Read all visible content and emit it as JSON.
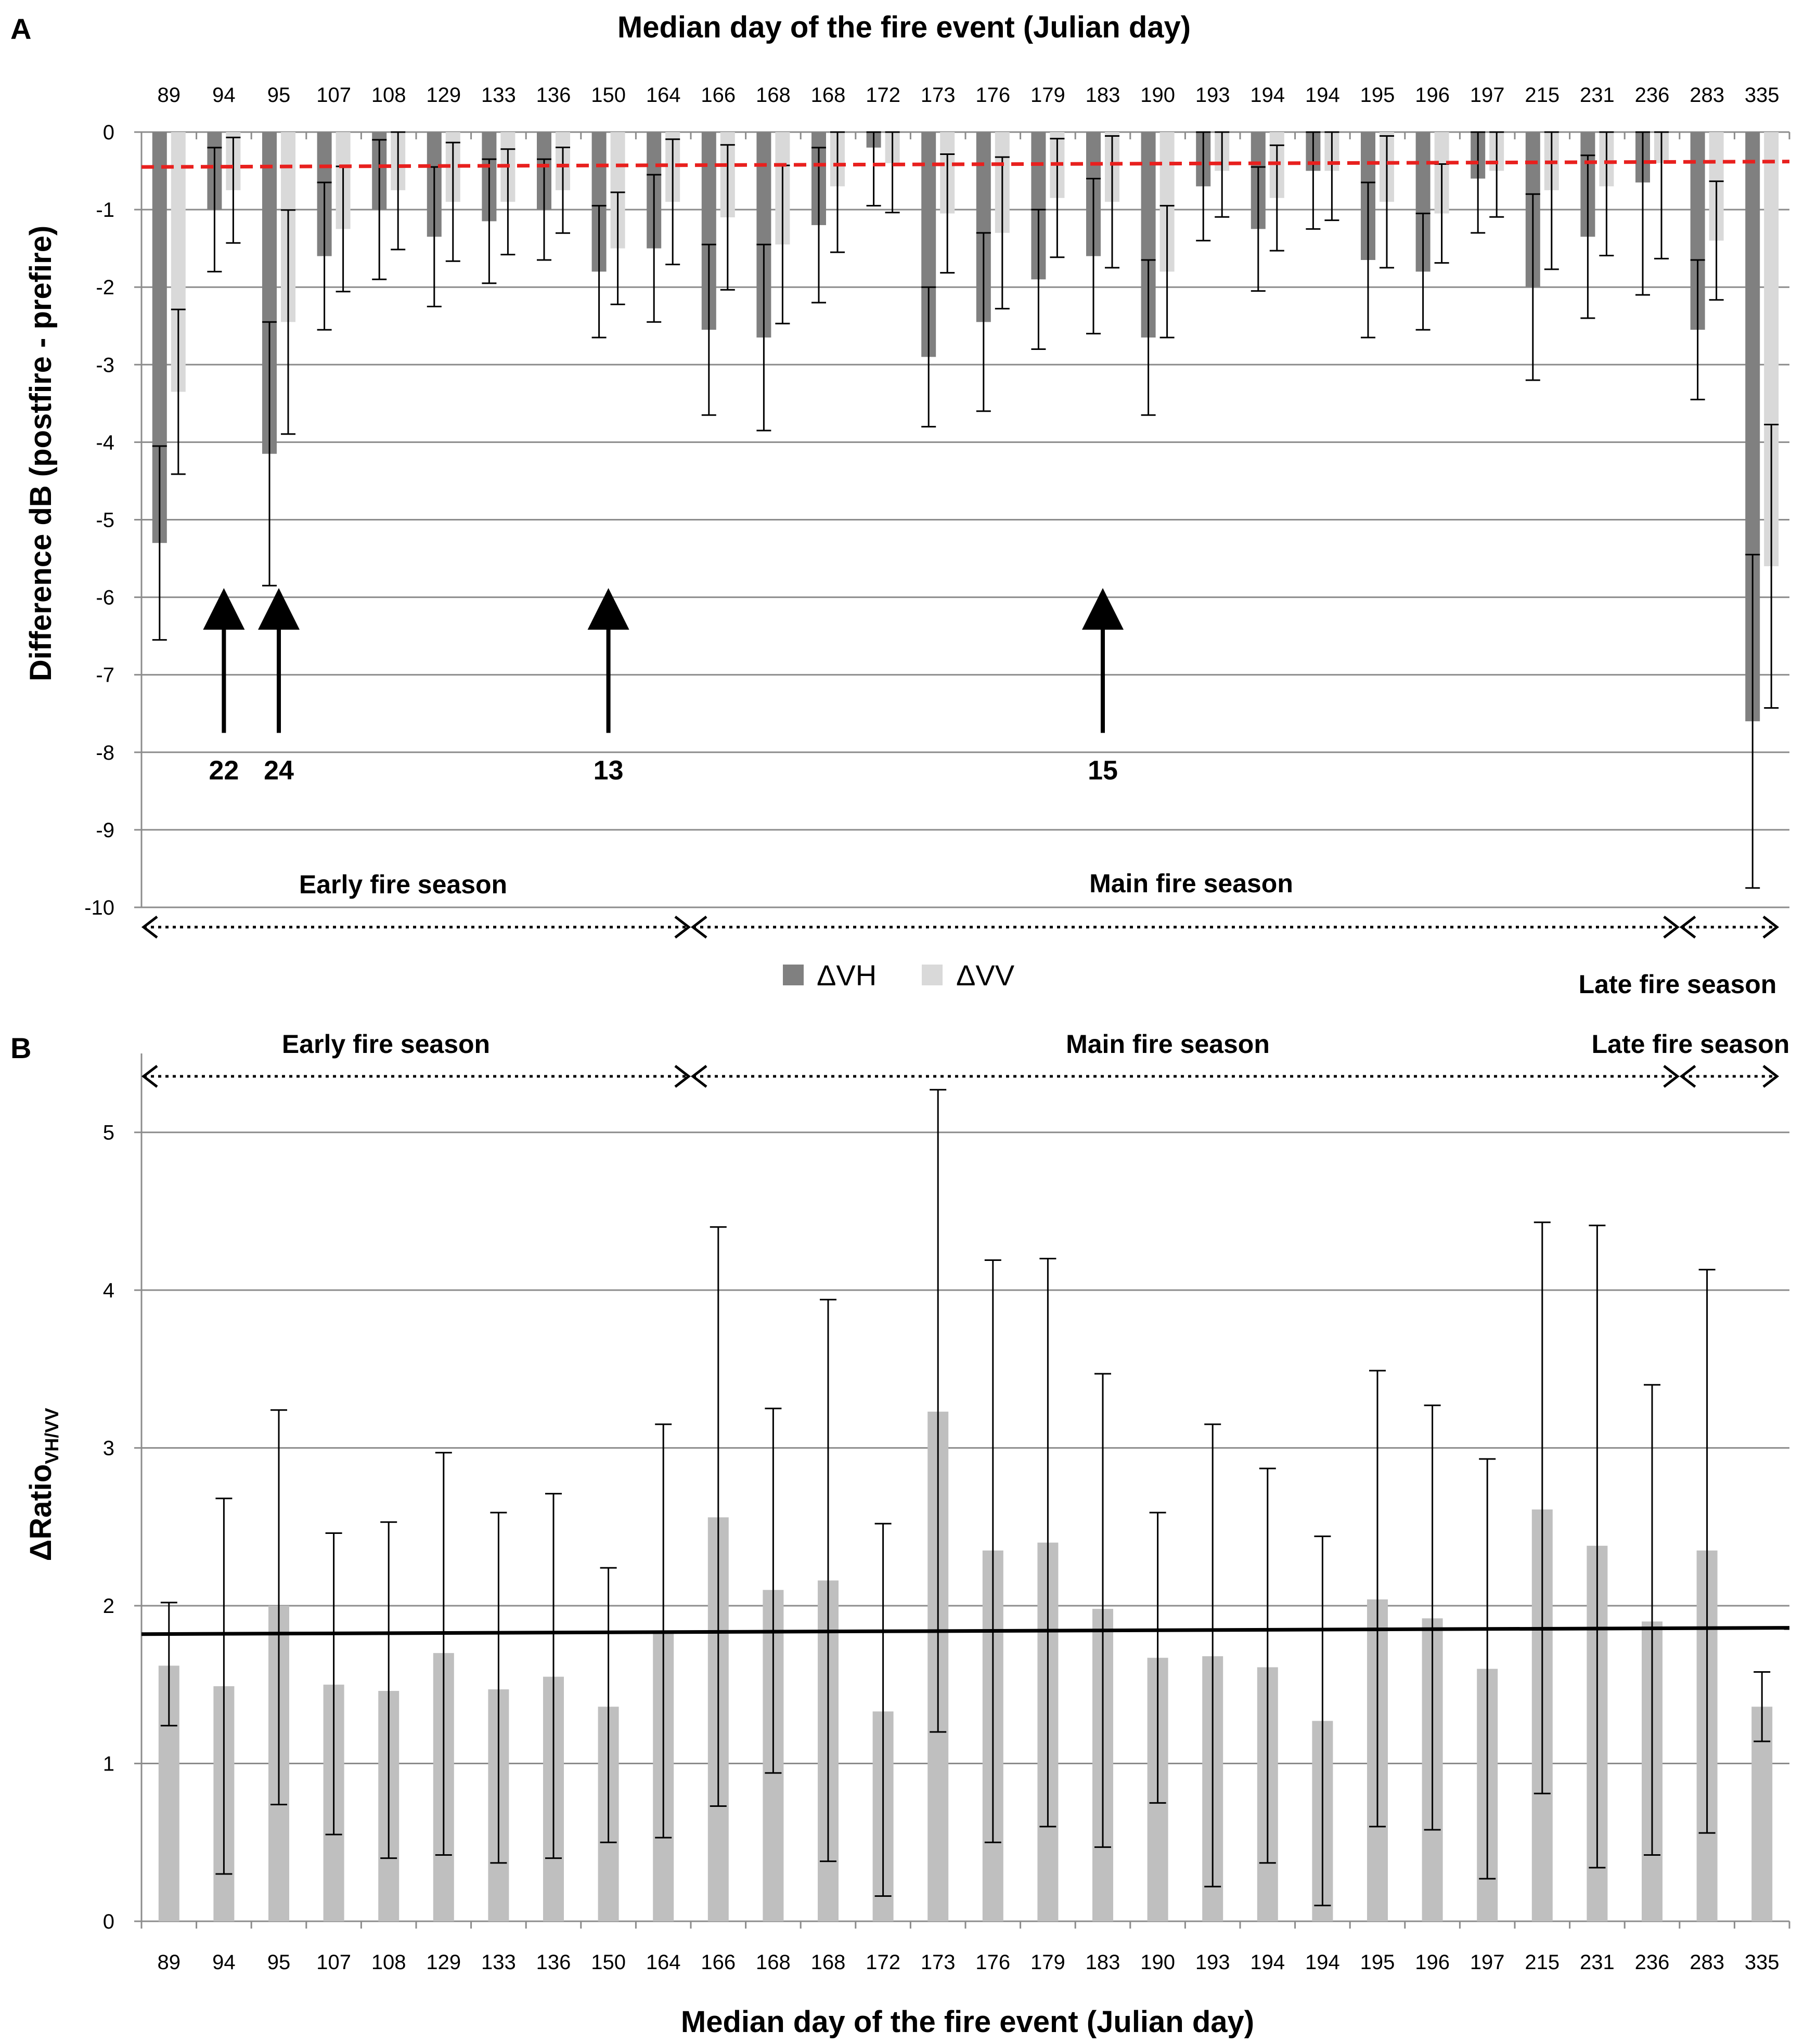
{
  "chart_data": [
    {
      "panel": "A",
      "type": "bar",
      "title": "Median day of the fire event (Julian day)",
      "ylabel": "Difference dB (postfire - prefire)",
      "ylim": [
        -10,
        0
      ],
      "yticks": [
        0,
        -1,
        -2,
        -3,
        -4,
        -5,
        -6,
        -7,
        -8,
        -9,
        -10
      ],
      "categories": [
        "89",
        "94",
        "95",
        "107",
        "108",
        "129",
        "133",
        "136",
        "150",
        "164",
        "166",
        "168",
        "168",
        "172",
        "173",
        "176",
        "179",
        "183",
        "190",
        "193",
        "194",
        "194",
        "195",
        "196",
        "197",
        "215",
        "231",
        "236",
        "283",
        "335"
      ],
      "series": [
        {
          "name": "ΔVH",
          "color": "#808080",
          "values": [
            -5.3,
            -1.0,
            -4.15,
            -1.6,
            -1.0,
            -1.35,
            -1.15,
            -1.0,
            -1.8,
            -1.5,
            -2.55,
            -2.65,
            -1.2,
            -0.2,
            -2.9,
            -2.45,
            -1.9,
            -1.6,
            -2.65,
            -0.7,
            -1.25,
            -0.5,
            -1.65,
            -1.8,
            -0.6,
            -2.0,
            -1.35,
            -0.65,
            -2.55,
            -7.6
          ],
          "err": [
            1.25,
            0.8,
            1.7,
            0.95,
            0.9,
            0.9,
            0.8,
            0.65,
            0.85,
            0.95,
            1.1,
            1.2,
            1.0,
            0.75,
            0.9,
            1.15,
            0.9,
            1.0,
            1.0,
            0.7,
            0.8,
            0.75,
            1.0,
            0.75,
            0.7,
            1.2,
            1.05,
            1.45,
            0.9,
            2.15
          ]
        },
        {
          "name": "ΔVV",
          "color": "#d9d9d9",
          "values": [
            -3.35,
            -0.75,
            -2.45,
            -1.25,
            -0.75,
            -0.9,
            -0.9,
            -0.75,
            -1.5,
            -0.9,
            -1.1,
            -1.45,
            -0.7,
            -0.4,
            -1.05,
            -1.3,
            -0.85,
            -0.9,
            -1.8,
            -0.5,
            -0.85,
            -0.5,
            -0.9,
            -1.05,
            -0.5,
            -0.75,
            -0.7,
            -0.4,
            -1.4,
            -5.6
          ]
        }
      ],
      "reference_line": {
        "color": "#e8201e",
        "style": "dashed",
        "start": -0.45,
        "end": -0.38
      },
      "annotations": [
        {
          "label": "22",
          "category_index": 1
        },
        {
          "label": "24",
          "category_index": 2
        },
        {
          "label": "13",
          "category_index": 8
        },
        {
          "label": "15",
          "category_index": 17
        }
      ],
      "seasons": [
        "Early fire season",
        "Main fire season",
        "Late fire season"
      ],
      "legend_position": "bottom"
    },
    {
      "panel": "B",
      "type": "bar",
      "xlabel": "Median day of the fire event (Julian day)",
      "ylabel_main": "ΔRatio",
      "ylabel_sub": "VH/VV",
      "ylim": [
        0,
        5.5
      ],
      "yticks": [
        0,
        1,
        2,
        3,
        4,
        5
      ],
      "categories": [
        "89",
        "94",
        "95",
        "107",
        "108",
        "129",
        "133",
        "136",
        "150",
        "164",
        "166",
        "168",
        "168",
        "172",
        "173",
        "176",
        "179",
        "183",
        "190",
        "193",
        "194",
        "194",
        "195",
        "196",
        "197",
        "215",
        "231",
        "236",
        "283",
        "335"
      ],
      "series": [
        {
          "name": "ΔRatio",
          "color": "#bfbfbf",
          "values": [
            1.62,
            1.49,
            2.0,
            1.5,
            1.46,
            1.7,
            1.47,
            1.55,
            1.36,
            1.83,
            2.56,
            2.1,
            2.16,
            1.33,
            3.23,
            2.35,
            2.4,
            1.98,
            1.67,
            1.68,
            1.61,
            1.27,
            2.04,
            1.92,
            1.6,
            2.61,
            2.38,
            1.9,
            2.35,
            1.36
          ],
          "err_low": [
            1.24,
            0.3,
            0.74,
            0.55,
            0.4,
            0.42,
            0.37,
            0.4,
            0.5,
            0.53,
            0.73,
            0.94,
            0.38,
            0.16,
            1.2,
            0.5,
            0.6,
            0.47,
            0.75,
            0.22,
            0.37,
            0.1,
            0.6,
            0.58,
            0.27,
            0.81,
            0.34,
            0.42,
            0.56,
            1.14
          ],
          "err_high": [
            2.02,
            2.68,
            3.24,
            2.46,
            2.53,
            2.97,
            2.59,
            2.71,
            2.24,
            3.15,
            4.4,
            3.25,
            3.94,
            2.52,
            5.27,
            4.19,
            4.2,
            3.47,
            2.59,
            3.15,
            2.87,
            2.44,
            3.49,
            3.27,
            2.93,
            4.43,
            4.41,
            3.4,
            4.13,
            1.58
          ]
        }
      ],
      "reference_line": {
        "color": "#000000",
        "style": "solid",
        "start": 1.82,
        "end": 1.86
      },
      "seasons": [
        "Early fire season",
        "Main fire season",
        "Late fire season"
      ]
    }
  ]
}
